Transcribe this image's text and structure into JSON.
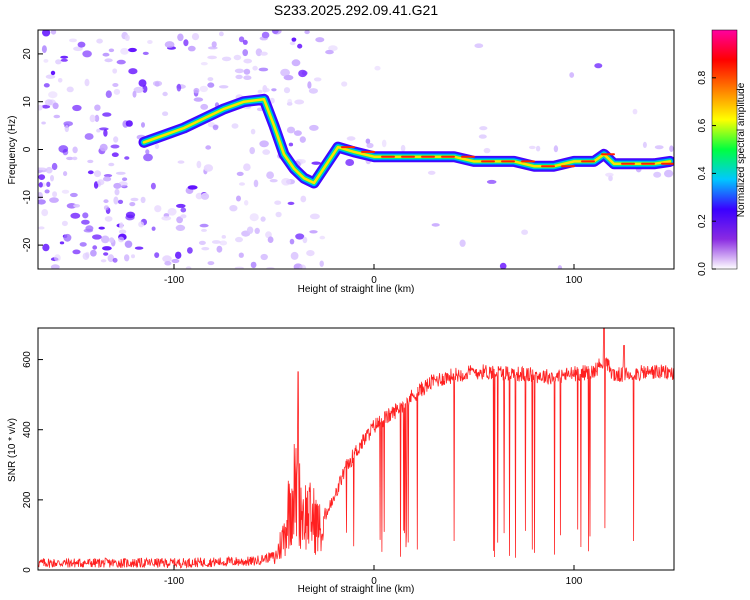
{
  "title": "S233.2025.292.09.41.G21",
  "chart_data": [
    {
      "type": "heatmap",
      "xlabel": "Height of straight line (km)",
      "ylabel": "Frequency (Hz)",
      "xlim": [
        -168,
        150
      ],
      "ylim": [
        -25,
        25
      ],
      "xticks": [
        -100,
        0,
        100
      ],
      "yticks": [
        -20,
        -10,
        0,
        10,
        20
      ],
      "colorbar": {
        "label": "Normalized spectral amplitude",
        "range": [
          0,
          1
        ],
        "ticks": [
          0.0,
          0.2,
          0.4,
          0.6,
          0.8
        ],
        "tick_labels": [
          "0.0",
          "0.2",
          "0.4",
          "0.6",
          "0.8"
        ],
        "colors": [
          "#ffffff",
          "#8a2be2",
          "#3a00ff",
          "#00c8ff",
          "#00ff40",
          "#ffff00",
          "#ff7f00",
          "#ff0000",
          "#ff00a0"
        ]
      },
      "ridge": [
        {
          "x": -115,
          "y": 1.5
        },
        {
          "x": -105,
          "y": 3
        },
        {
          "x": -95,
          "y": 4.5
        },
        {
          "x": -85,
          "y": 6.5
        },
        {
          "x": -75,
          "y": 8.5
        },
        {
          "x": -65,
          "y": 10
        },
        {
          "x": -55,
          "y": 10.5
        },
        {
          "x": -50,
          "y": 5
        },
        {
          "x": -45,
          "y": -1
        },
        {
          "x": -40,
          "y": -4
        },
        {
          "x": -35,
          "y": -6
        },
        {
          "x": -30,
          "y": -7
        },
        {
          "x": -22,
          "y": -2
        },
        {
          "x": -18,
          "y": 0.5
        },
        {
          "x": -10,
          "y": -0.5
        },
        {
          "x": 0,
          "y": -1.5
        },
        {
          "x": 10,
          "y": -1.5
        },
        {
          "x": 20,
          "y": -1.5
        },
        {
          "x": 30,
          "y": -1.5
        },
        {
          "x": 40,
          "y": -1.5
        },
        {
          "x": 50,
          "y": -2.5
        },
        {
          "x": 60,
          "y": -2.5
        },
        {
          "x": 70,
          "y": -2.5
        },
        {
          "x": 80,
          "y": -3.5
        },
        {
          "x": 90,
          "y": -3.5
        },
        {
          "x": 100,
          "y": -2.5
        },
        {
          "x": 110,
          "y": -2.5
        },
        {
          "x": 115,
          "y": -1
        },
        {
          "x": 120,
          "y": -3
        },
        {
          "x": 130,
          "y": -3
        },
        {
          "x": 140,
          "y": -3
        },
        {
          "x": 148,
          "y": -2.5
        }
      ]
    },
    {
      "type": "line",
      "xlabel": "Height of straight line (km)",
      "ylabel": "SNR (10 * v/v)",
      "xlim": [
        -168,
        150
      ],
      "ylim": [
        0,
        690
      ],
      "xticks": [
        -100,
        0,
        100
      ],
      "yticks": [
        0,
        200,
        400,
        600
      ],
      "color": "#ff2020",
      "envelope": [
        {
          "x": -168,
          "y": 20
        },
        {
          "x": -100,
          "y": 20
        },
        {
          "x": -60,
          "y": 25
        },
        {
          "x": -50,
          "y": 40
        },
        {
          "x": -45,
          "y": 150
        },
        {
          "x": -42,
          "y": 300
        },
        {
          "x": -40,
          "y": 350
        },
        {
          "x": -35,
          "y": 250
        },
        {
          "x": -30,
          "y": 220
        },
        {
          "x": -25,
          "y": 150
        },
        {
          "x": -20,
          "y": 200
        },
        {
          "x": -15,
          "y": 280
        },
        {
          "x": -10,
          "y": 330
        },
        {
          "x": 0,
          "y": 410
        },
        {
          "x": 10,
          "y": 450
        },
        {
          "x": 20,
          "y": 500
        },
        {
          "x": 30,
          "y": 540
        },
        {
          "x": 40,
          "y": 555
        },
        {
          "x": 50,
          "y": 565
        },
        {
          "x": 60,
          "y": 565
        },
        {
          "x": 70,
          "y": 560
        },
        {
          "x": 80,
          "y": 555
        },
        {
          "x": 90,
          "y": 550
        },
        {
          "x": 100,
          "y": 560
        },
        {
          "x": 110,
          "y": 565
        },
        {
          "x": 115,
          "y": 600
        },
        {
          "x": 120,
          "y": 555
        },
        {
          "x": 130,
          "y": 560
        },
        {
          "x": 140,
          "y": 565
        },
        {
          "x": 150,
          "y": 560
        }
      ],
      "peaks": [
        {
          "x": -38,
          "y": 565
        },
        {
          "x": 115,
          "y": 690
        },
        {
          "x": 125,
          "y": 640
        }
      ]
    }
  ]
}
